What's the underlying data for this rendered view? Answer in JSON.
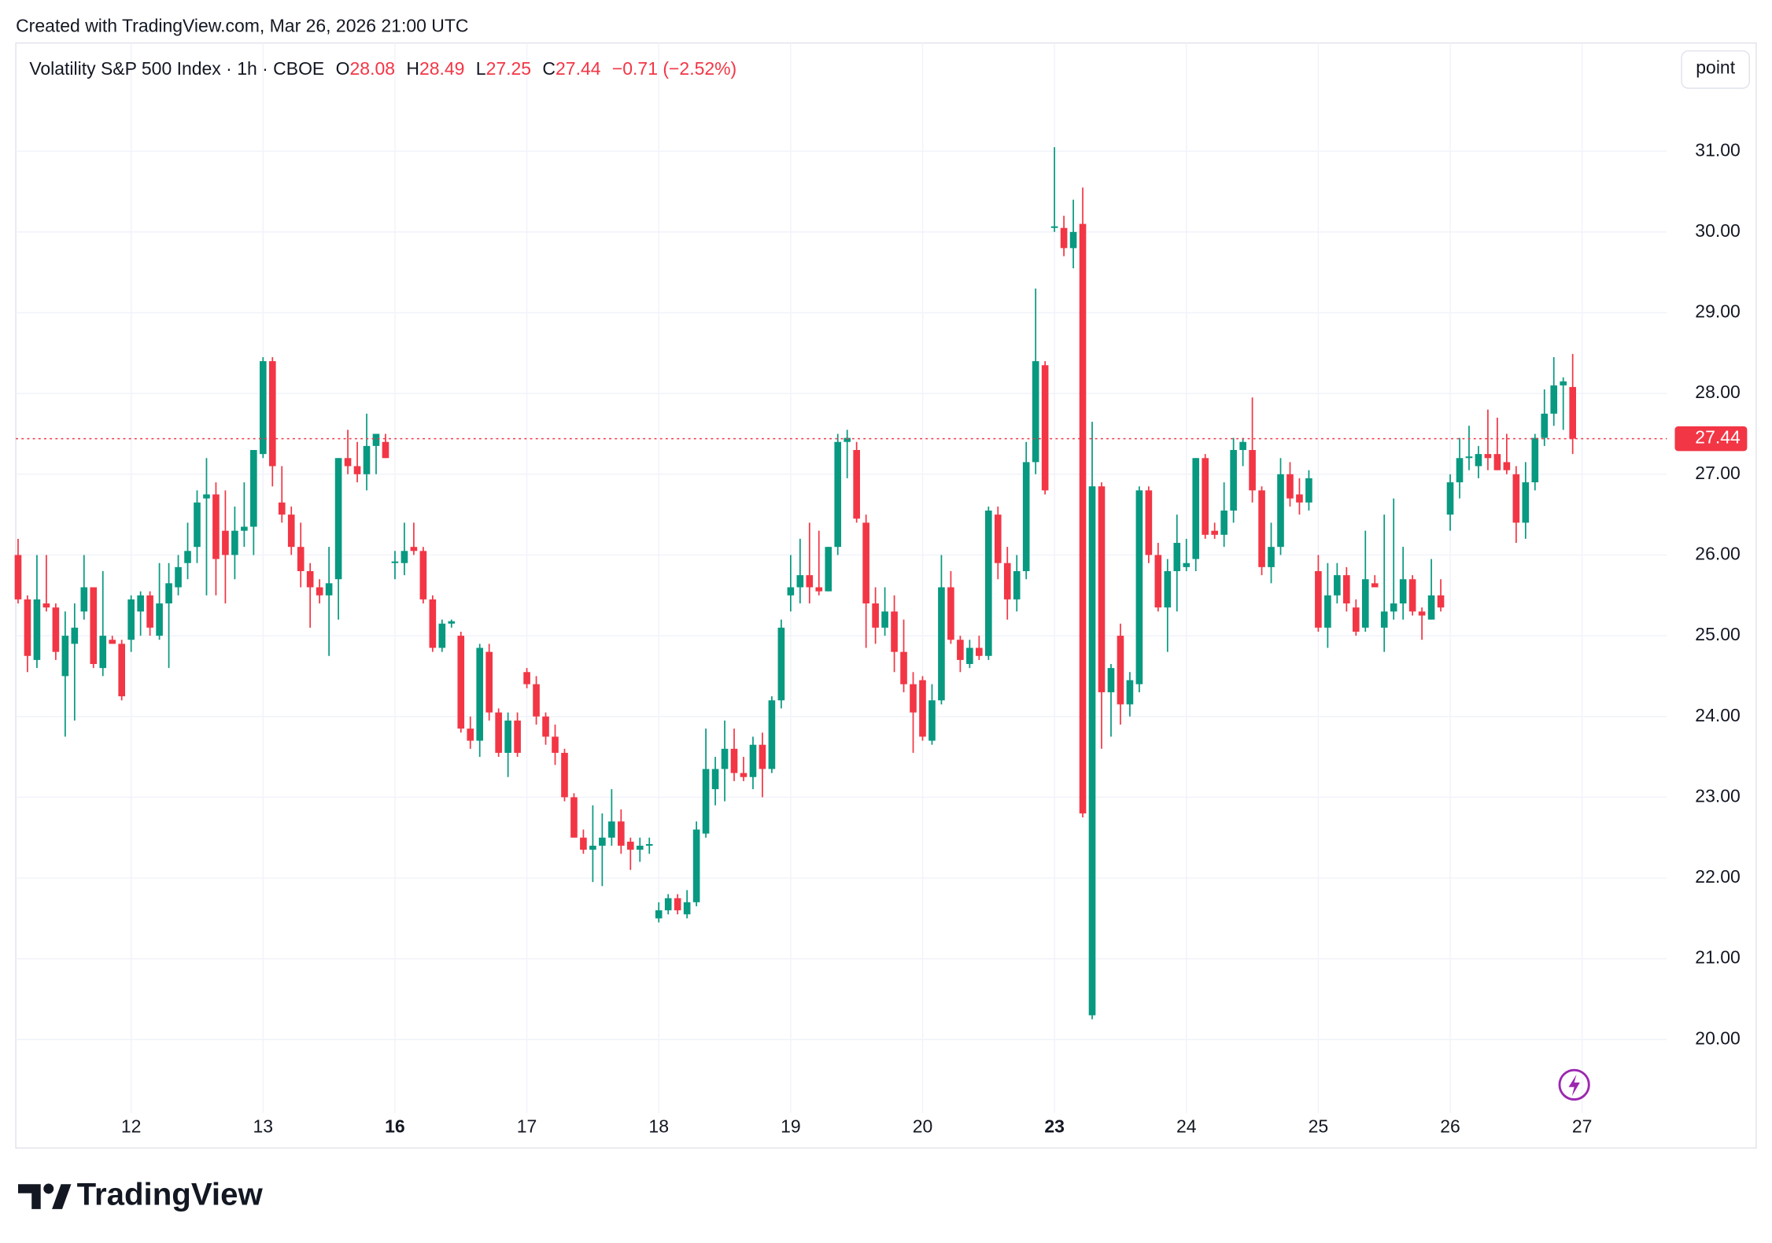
{
  "header": {
    "attribution": "Created with TradingView.com, Mar 26, 2026 21:00 UTC",
    "logo": "TradingView",
    "scale_button": "point"
  },
  "chart_data": {
    "type": "candlestick",
    "title": "Volatility S&P 500 Index · 1h · CBOE",
    "ohlc_legend": [
      {
        "key": "O",
        "value": 28.08
      },
      {
        "key": "H",
        "value": 28.49
      },
      {
        "key": "L",
        "value": 27.25
      },
      {
        "key": "C",
        "value": 27.44
      }
    ],
    "change": "−0.71 (−2.52%)",
    "up_color": "#089981",
    "down_color": "#f23645",
    "open": [
      26.0,
      25.45,
      24.7,
      25.4,
      25.35,
      24.5,
      24.9,
      25.3,
      25.6,
      24.6,
      24.95,
      24.9,
      24.95,
      25.3,
      25.5,
      25.0,
      25.4,
      25.6,
      25.9,
      26.1,
      26.7,
      26.75,
      26.3,
      26.0,
      26.3,
      26.35,
      27.25,
      28.4,
      26.65,
      26.5,
      26.1,
      25.8,
      25.6,
      25.5,
      25.7,
      27.2,
      27.1,
      27.0,
      27.35,
      27.4,
      25.9,
      25.9,
      26.1,
      26.05,
      25.45,
      24.85,
      25.15,
      25.0,
      23.85,
      23.7,
      24.8,
      24.05,
      23.55,
      23.95,
      24.55,
      24.4,
      24.0,
      23.75,
      23.55,
      23.0,
      22.5,
      22.35,
      22.4,
      22.5,
      22.7,
      22.45,
      22.35,
      22.4,
      21.5,
      21.6,
      21.75,
      21.55,
      21.7,
      22.55,
      23.1,
      23.35,
      23.6,
      23.3,
      23.25,
      23.65,
      23.35,
      24.2,
      25.5,
      25.6,
      25.75,
      25.6,
      25.55,
      26.1,
      27.4,
      27.3,
      26.4,
      25.4,
      25.1,
      25.3,
      24.8,
      24.4,
      24.45,
      23.7,
      24.2,
      25.6,
      24.95,
      24.65,
      24.85,
      24.75,
      26.5,
      25.9,
      25.45,
      25.8,
      27.15,
      28.35,
      30.05,
      30.05,
      29.8,
      30.1,
      20.3,
      26.85,
      24.3,
      25.0,
      24.15,
      24.4,
      26.8,
      26.0,
      25.35,
      25.8,
      25.85,
      25.95,
      27.2,
      26.3,
      26.25,
      26.55,
      27.3,
      27.3,
      26.8,
      25.85,
      26.1,
      27.0,
      26.75,
      26.65,
      25.8,
      25.1,
      25.5,
      25.75,
      25.35,
      25.1,
      25.65,
      25.1,
      25.3,
      25.4,
      25.7,
      25.3,
      25.2,
      25.5,
      26.5,
      26.9,
      27.2,
      27.1,
      27.25,
      27.25,
      27.15,
      27.0,
      26.4,
      26.9,
      27.45,
      27.75,
      28.1,
      28.08
    ],
    "high": [
      26.2,
      25.5,
      26.0,
      26.0,
      25.4,
      25.3,
      25.4,
      26.0,
      25.6,
      25.8,
      25.0,
      24.95,
      25.5,
      25.55,
      25.55,
      25.9,
      25.9,
      26.0,
      26.4,
      26.8,
      27.2,
      26.9,
      26.8,
      26.6,
      26.9,
      27.3,
      28.45,
      28.45,
      27.1,
      26.6,
      26.4,
      25.9,
      25.7,
      26.1,
      27.2,
      27.55,
      27.4,
      27.75,
      27.5,
      27.5,
      26.05,
      26.4,
      26.4,
      26.1,
      25.5,
      25.2,
      25.2,
      25.05,
      24.0,
      24.9,
      24.9,
      24.1,
      24.05,
      24.05,
      24.6,
      24.5,
      24.05,
      23.9,
      23.6,
      23.05,
      22.6,
      22.9,
      22.8,
      23.1,
      22.85,
      22.5,
      22.5,
      22.5,
      21.7,
      21.8,
      21.8,
      21.85,
      22.7,
      23.85,
      23.5,
      23.95,
      23.85,
      23.5,
      23.75,
      23.8,
      24.25,
      25.2,
      26.0,
      26.2,
      26.4,
      26.3,
      26.1,
      27.5,
      27.55,
      27.4,
      26.5,
      25.6,
      25.6,
      25.5,
      25.2,
      24.55,
      24.5,
      24.4,
      26.0,
      25.8,
      25.0,
      24.95,
      25.0,
      26.6,
      26.6,
      26.1,
      26.0,
      27.4,
      29.3,
      28.4,
      31.05,
      30.2,
      30.4,
      30.55,
      27.65,
      26.9,
      24.65,
      25.15,
      24.55,
      26.85,
      26.85,
      26.15,
      25.95,
      26.5,
      26.2,
      27.2,
      27.25,
      26.4,
      26.9,
      27.45,
      27.45,
      27.95,
      26.85,
      26.4,
      27.2,
      27.15,
      26.95,
      27.05,
      26.0,
      25.9,
      25.9,
      25.85,
      25.45,
      26.3,
      25.75,
      26.5,
      26.7,
      26.1,
      25.75,
      25.35,
      25.95,
      25.7,
      27.0,
      27.45,
      27.6,
      27.35,
      27.8,
      27.7,
      27.5,
      27.1,
      27.15,
      27.5,
      28.05,
      28.45,
      28.2,
      28.49
    ],
    "low": [
      25.4,
      24.55,
      24.6,
      25.3,
      24.7,
      23.75,
      23.95,
      25.2,
      24.6,
      24.5,
      24.9,
      24.2,
      24.8,
      25.0,
      25.0,
      24.95,
      24.6,
      25.5,
      25.7,
      25.9,
      25.5,
      25.5,
      25.4,
      25.7,
      26.1,
      26.0,
      27.2,
      26.85,
      26.4,
      26.0,
      25.6,
      25.1,
      25.4,
      24.75,
      25.2,
      27.0,
      26.9,
      26.8,
      27.0,
      27.2,
      25.7,
      25.75,
      26.0,
      25.4,
      24.8,
      24.8,
      25.1,
      23.8,
      23.6,
      23.5,
      23.95,
      23.5,
      23.25,
      23.5,
      24.35,
      23.9,
      23.65,
      23.4,
      22.95,
      22.5,
      22.3,
      21.95,
      21.9,
      22.4,
      22.3,
      22.1,
      22.2,
      22.3,
      21.45,
      21.55,
      21.55,
      21.5,
      21.65,
      22.5,
      22.9,
      22.95,
      23.2,
      23.2,
      23.1,
      23.0,
      23.3,
      24.1,
      25.3,
      25.4,
      25.4,
      25.5,
      25.55,
      26.0,
      26.95,
      26.4,
      24.85,
      24.9,
      25.0,
      24.55,
      24.3,
      23.55,
      23.7,
      23.65,
      24.15,
      24.9,
      24.55,
      24.6,
      24.7,
      24.7,
      25.7,
      25.2,
      25.3,
      25.7,
      27.0,
      26.75,
      30.0,
      29.7,
      29.55,
      22.75,
      20.25,
      23.6,
      23.75,
      23.9,
      24.0,
      24.3,
      25.9,
      25.3,
      24.8,
      25.3,
      25.8,
      25.8,
      26.2,
      26.2,
      26.1,
      26.4,
      27.1,
      26.65,
      25.75,
      25.65,
      26.0,
      26.6,
      26.5,
      26.55,
      25.05,
      24.85,
      25.4,
      25.3,
      25.0,
      25.05,
      25.6,
      24.8,
      25.2,
      25.2,
      25.25,
      24.95,
      25.2,
      25.3,
      26.3,
      26.7,
      27.05,
      26.95,
      27.05,
      27.05,
      27.0,
      26.15,
      26.2,
      26.8,
      27.35,
      27.6,
      27.55,
      27.25
    ],
    "close": [
      25.45,
      24.75,
      25.45,
      25.35,
      24.8,
      25.0,
      25.1,
      25.6,
      24.65,
      25.0,
      24.9,
      24.25,
      25.45,
      25.5,
      25.1,
      25.4,
      25.65,
      25.85,
      26.05,
      26.65,
      26.75,
      25.95,
      26.0,
      26.3,
      26.35,
      27.3,
      28.4,
      27.1,
      26.5,
      26.1,
      25.8,
      25.6,
      25.5,
      25.65,
      27.2,
      27.1,
      27.0,
      27.35,
      27.5,
      27.2,
      25.92,
      26.05,
      26.05,
      25.45,
      24.85,
      25.15,
      25.18,
      23.85,
      23.7,
      24.85,
      24.05,
      23.55,
      23.95,
      23.55,
      24.4,
      24.0,
      23.75,
      23.55,
      23.0,
      22.5,
      22.35,
      22.4,
      22.5,
      22.7,
      22.4,
      22.35,
      22.4,
      22.42,
      21.6,
      21.75,
      21.6,
      21.7,
      22.6,
      23.35,
      23.35,
      23.6,
      23.3,
      23.25,
      23.65,
      23.35,
      24.2,
      25.1,
      25.6,
      25.75,
      25.6,
      25.55,
      26.1,
      27.4,
      27.45,
      26.45,
      25.4,
      25.1,
      25.3,
      24.8,
      24.4,
      24.05,
      23.75,
      24.2,
      25.6,
      24.95,
      24.7,
      24.85,
      24.75,
      26.55,
      25.9,
      25.45,
      25.8,
      27.15,
      28.4,
      26.8,
      30.07,
      29.8,
      30.0,
      22.8,
      26.85,
      24.3,
      24.6,
      24.15,
      24.45,
      26.8,
      26.0,
      25.35,
      25.8,
      26.15,
      25.9,
      27.2,
      26.25,
      26.25,
      26.55,
      27.3,
      27.4,
      26.8,
      25.85,
      26.1,
      27.0,
      26.7,
      26.65,
      26.95,
      25.1,
      25.5,
      25.75,
      25.4,
      25.05,
      25.7,
      25.6,
      25.3,
      25.4,
      25.7,
      25.3,
      25.25,
      25.5,
      25.35,
      26.9,
      27.2,
      27.22,
      27.25,
      27.2,
      27.05,
      27.05,
      26.4,
      26.9,
      27.45,
      27.75,
      28.1,
      28.15,
      27.44
    ],
    "xlim": [
      -0.24,
      175
    ],
    "xticks": [
      12,
      {
        "value": 26,
        "label": "13"
      },
      {
        "value": 40,
        "label": "16",
        "bold": true
      },
      {
        "value": 54,
        "label": "17"
      },
      {
        "value": 68,
        "label": "18"
      },
      {
        "value": 82,
        "label": "19"
      },
      {
        "value": 96,
        "label": "20"
      },
      {
        "value": 110,
        "label": "23",
        "bold": true
      },
      {
        "value": 124,
        "label": "24"
      },
      {
        "value": 138,
        "label": "25"
      },
      {
        "value": 152,
        "label": "26"
      },
      {
        "value": 166,
        "label": "27"
      }
    ],
    "ylim": [
      19.09,
      32.34
    ],
    "yticks": [
      {
        "value": 20,
        "label": "20.00"
      },
      {
        "value": 21,
        "label": "21.00"
      },
      {
        "value": 22,
        "label": "22.00"
      },
      {
        "value": 23,
        "label": "23.00"
      },
      {
        "value": 24,
        "label": "24.00"
      },
      {
        "value": 25,
        "label": "25.00"
      },
      {
        "value": 26,
        "label": "26.00"
      },
      {
        "value": 27,
        "label": "27.00"
      },
      {
        "value": 28,
        "label": "28.00"
      },
      {
        "value": 29,
        "label": "29.00"
      },
      {
        "value": 30,
        "label": "30.00"
      },
      {
        "value": 31,
        "label": "31.00"
      }
    ],
    "last_price": 27.44,
    "grid": true
  }
}
